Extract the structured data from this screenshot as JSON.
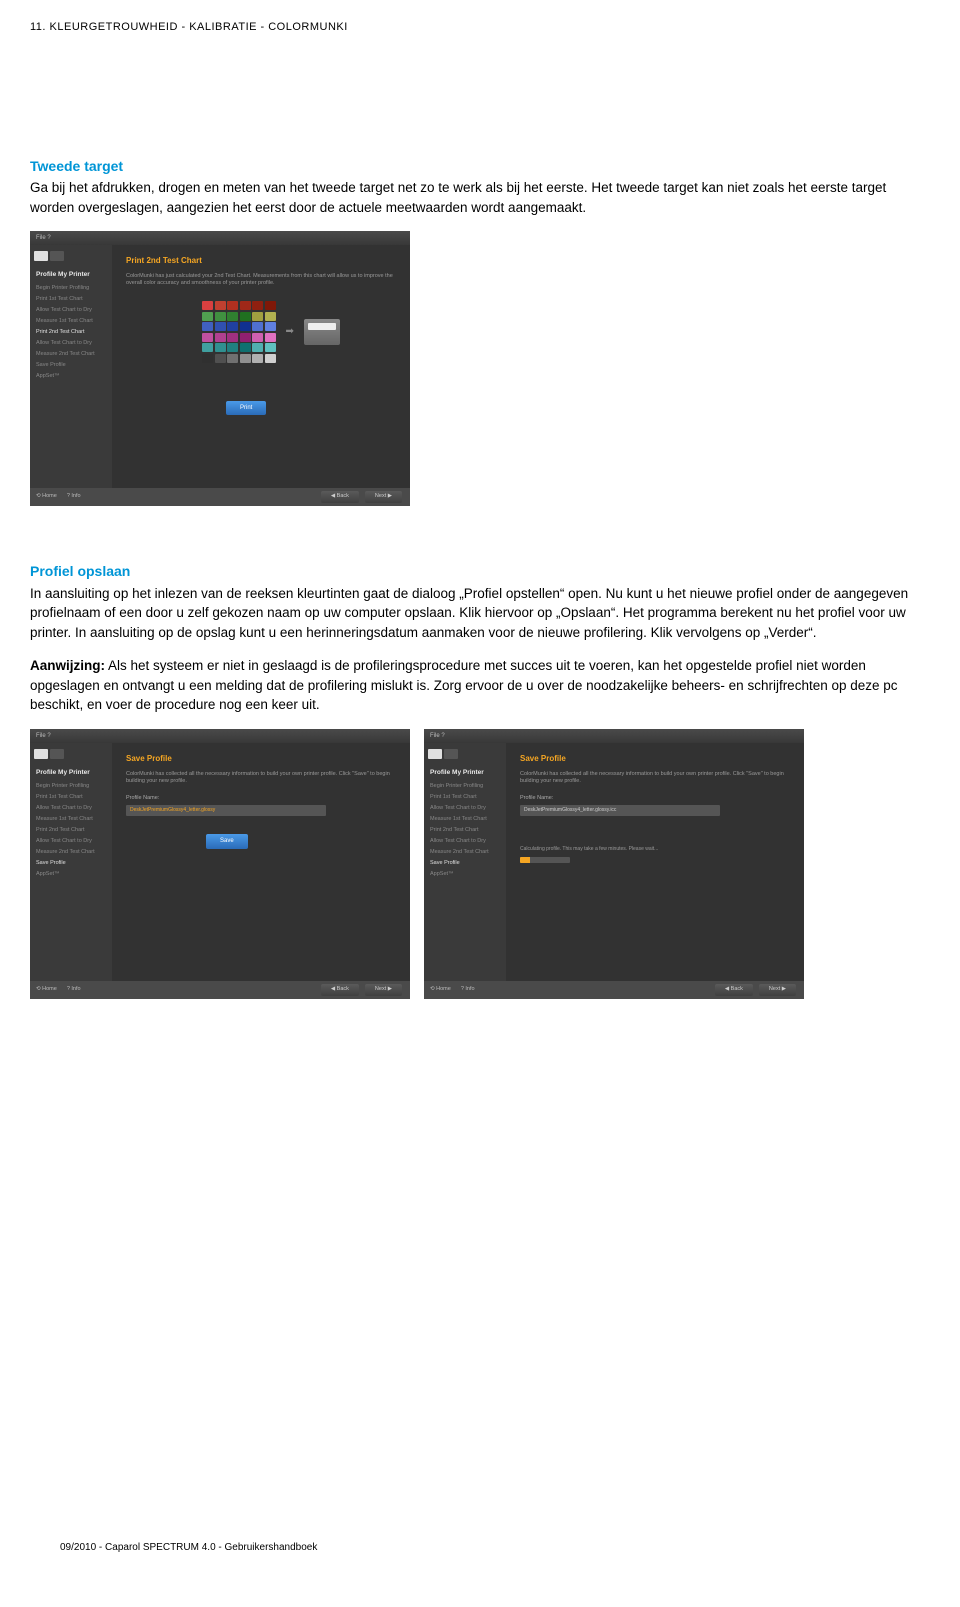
{
  "page_header": "11. KLEURGETROUWHEID - KALIBRATIE - COLORMUNKI",
  "section1": {
    "heading": "Tweede target",
    "text": "Ga bij het afdrukken, drogen en meten van het tweede target net zo te werk als bij het eerste. Het tweede target kan niet zoals het eerste target worden overgeslagen, aangezien het eerst door de actuele meetwaarden wordt aangemaakt."
  },
  "section2": {
    "heading": "Profiel opslaan",
    "para1": "In aansluiting op het inlezen van de reeksen kleurtinten gaat de dialoog „Profiel opstellen“ open. Nu kunt u het nieuwe profiel onder de aangegeven profielnaam of een door u zelf gekozen naam op uw computer opslaan. Klik hiervoor op „Opslaan“. Het programma berekent nu het profiel voor uw printer. In aansluiting op de opslag kunt u een herinneringsdatum aanmaken voor de nieuwe profilering. Klik vervolgens op „Verder“.",
    "para2_bold": "Aanwijzing:",
    "para2_rest": " Als het systeem er niet in geslaagd is de profileringsprocedure met succes uit te voeren, kan het opgestelde profiel niet worden opgeslagen en ontvangt u een melding dat de profilering mislukt is. Zorg ervoor de u over de noodzakelijke beheers- en schrijfrechten op deze pc beschikt, en voer de procedure nog een keer uit."
  },
  "screenshot1": {
    "title_bar": "File  ?",
    "sidebar_title": "Profile My Printer",
    "sidebar_items": [
      "Begin Printer Profiling",
      "Print 1st Test Chart",
      "Allow Test Chart to Dry",
      "Measure 1st Test Chart",
      "Print 2nd Test Chart",
      "Allow Test Chart to Dry",
      "Measure 2nd Test Chart",
      "Save Profile",
      "AppSet™"
    ],
    "sidebar_active_index": 4,
    "heading": "Print 2nd Test Chart",
    "subtext": "ColorMunki has just calculated your 2nd Test Chart. Measurements from this chart will allow us to improve the overall color accuracy and smoothness of your printer profile.",
    "button": "Print",
    "footer_left": [
      "⟲ Home",
      "? Info"
    ],
    "footer_right": [
      "◀ Back",
      "Next ▶"
    ],
    "swatches": [
      [
        "#d84040",
        "#c04030",
        "#b03020",
        "#a02818",
        "#902010",
        "#801808"
      ],
      [
        "#50a050",
        "#409040",
        "#308030",
        "#207020",
        "#a0a040",
        "#b0b050"
      ],
      [
        "#4060c0",
        "#3050b0",
        "#2040a0",
        "#103090",
        "#5070d0",
        "#6080e0"
      ],
      [
        "#c050a0",
        "#b04090",
        "#a03080",
        "#902070",
        "#d060b0",
        "#e070c0"
      ],
      [
        "#40a0a0",
        "#309090",
        "#208080",
        "#107070",
        "#50b0b0",
        "#60c0c0"
      ],
      [
        "#303030",
        "#505050",
        "#707070",
        "#909090",
        "#b0b0b0",
        "#d0d0d0"
      ]
    ]
  },
  "screenshot2": {
    "heading": "Save Profile",
    "subtext": "ColorMunki has collected all the necessary information to build your own printer profile. Click \"Save\" to begin building your new profile.",
    "field_label": "Profile Name:",
    "input_value": "DeskJetPremiumGlossy4_letter.glossy",
    "button": "Save",
    "sidebar_active_index": 7
  },
  "screenshot3": {
    "heading": "Save Profile",
    "subtext": "ColorMunki has collected all the necessary information to build your own printer profile. Click \"Save\" to begin building your new profile.",
    "field_label": "Profile Name:",
    "input_value": "DeskJetPremiumGlossy4_letter.glossy.icc",
    "progress_label": "Calculating profile. This may take a few minutes. Please wait...",
    "sidebar_active_index": 7
  },
  "footer_text": "09/2010 - Caparol SPECTRUM 4.0 - Gebruikershandboek",
  "colors": {
    "accent_blue": "#0095d6",
    "accent_orange": "#f5a623",
    "app_bg": "#363636"
  }
}
